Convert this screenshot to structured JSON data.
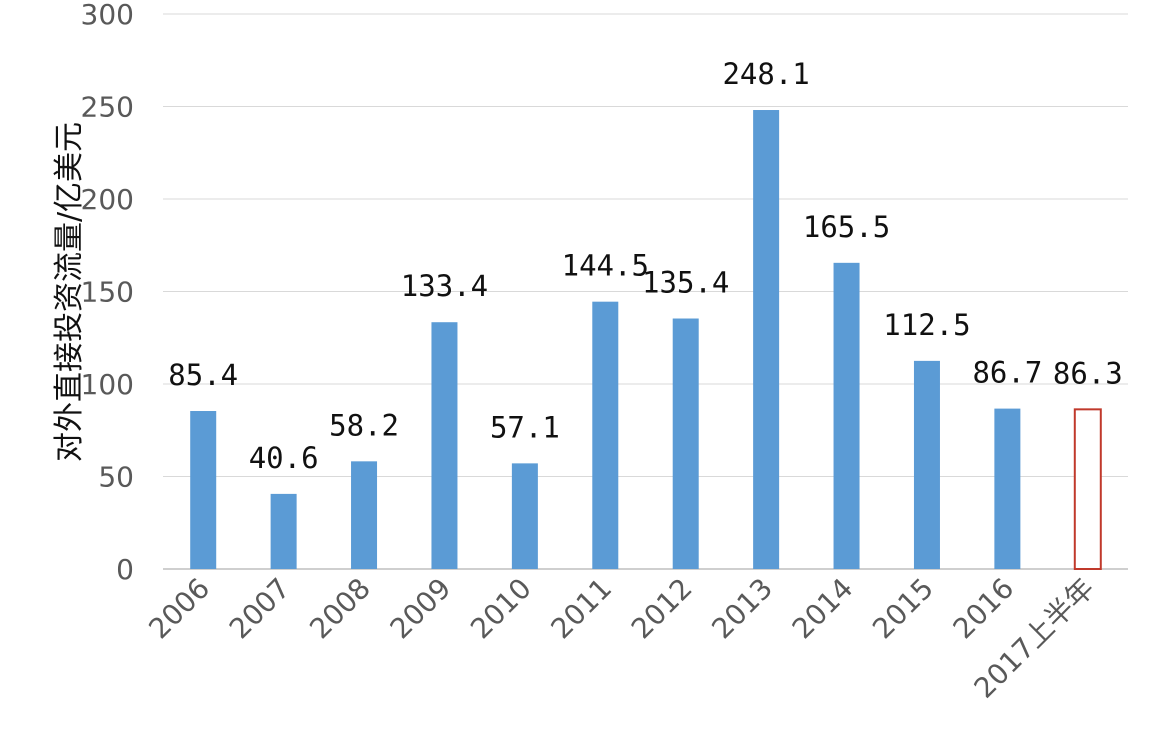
{
  "chart_data": {
    "type": "bar",
    "title": "",
    "xlabel": "",
    "ylabel": "对外直接投资流量/亿美元",
    "ylim": [
      0,
      300
    ],
    "yticks": [
      0,
      50,
      100,
      150,
      200,
      250,
      300
    ],
    "grid": true,
    "legend": "none",
    "categories": [
      "2006",
      "2007",
      "2008",
      "2009",
      "2010",
      "2011",
      "2012",
      "2013",
      "2014",
      "2015",
      "2016",
      "2017上半年"
    ],
    "values": [
      85.4,
      40.6,
      58.2,
      133.4,
      57.1,
      144.5,
      135.4,
      248.1,
      165.5,
      112.5,
      86.7,
      86.3
    ],
    "value_labels": [
      "85.4",
      "40.6",
      "58.2",
      "133.4",
      "57.1",
      "144.5",
      "135.4",
      "248.1",
      "165.5",
      "112.5",
      "86.7",
      "86.3"
    ],
    "bar_styles": [
      "filled",
      "filled",
      "filled",
      "filled",
      "filled",
      "filled",
      "filled",
      "filled",
      "filled",
      "filled",
      "filled",
      "outline"
    ],
    "colors": {
      "bar_fill": "#5b9bd5",
      "bar_outline": "#c0392b",
      "grid": "#d9d9d9",
      "tick_text": "#595959"
    }
  }
}
